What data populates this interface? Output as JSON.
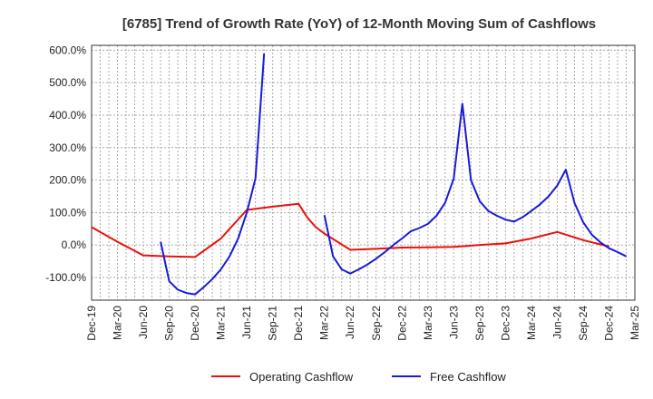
{
  "chart_data": {
    "type": "line",
    "title": "[6785]  Trend of Growth Rate (YoY) of 12-Month Moving Sum of Cashflows",
    "xlabel": "",
    "ylabel": "",
    "x_tick_labels": [
      "Dec-19",
      "Mar-20",
      "Jun-20",
      "Sep-20",
      "Dec-20",
      "Mar-21",
      "Jun-21",
      "Sep-21",
      "Dec-21",
      "Mar-22",
      "Jun-22",
      "Sep-22",
      "Dec-22",
      "Mar-23",
      "Jun-23",
      "Sep-23",
      "Dec-23",
      "Mar-24",
      "Jun-24",
      "Sep-24",
      "Dec-24",
      "Mar-25"
    ],
    "y_tick_labels": [
      "-100.0%",
      "0.0%",
      "100.0%",
      "200.0%",
      "300.0%",
      "400.0%",
      "500.0%",
      "600.0%"
    ],
    "y_ticks": [
      -100,
      0,
      100,
      200,
      300,
      400,
      500,
      600
    ],
    "ylim": [
      -170,
      615
    ],
    "grid": true,
    "legend_position": "bottom",
    "series": [
      {
        "name": "Operating Cashflow",
        "color": "#e8120c",
        "points": [
          [
            "Dec-19",
            55
          ],
          [
            "Mar-20",
            10
          ],
          [
            "Jun-20",
            -32
          ],
          [
            "Sep-20",
            -35
          ],
          [
            "Dec-20",
            -37
          ],
          [
            "Mar-21",
            20
          ],
          [
            "Jun-21",
            108
          ],
          [
            "Sep-21",
            118
          ],
          [
            "Dec-21",
            127
          ],
          [
            "Jan-22",
            85
          ],
          [
            "Feb-22",
            55
          ],
          [
            "Mar-22",
            35
          ],
          [
            "Jun-22",
            -15
          ],
          [
            "Sep-22",
            -12
          ],
          [
            "Dec-22",
            -8
          ],
          [
            "Mar-23",
            -7
          ],
          [
            "Jun-23",
            -6
          ],
          [
            "Sep-23",
            0
          ],
          [
            "Dec-23",
            5
          ],
          [
            "Mar-24",
            20
          ],
          [
            "Jun-24",
            40
          ],
          [
            "Sep-24",
            15
          ],
          [
            "Dec-24",
            -5
          ]
        ]
      },
      {
        "name": "Free Cashflow",
        "color": "#1a1adb",
        "points": [
          [
            "Aug-20",
            10
          ],
          [
            "Sep-20",
            -112
          ],
          [
            "Oct-20",
            -138
          ],
          [
            "Nov-20",
            -148
          ],
          [
            "Dec-20",
            -152
          ],
          [
            "Jan-21",
            -130
          ],
          [
            "Feb-21",
            -105
          ],
          [
            "Mar-21",
            -75
          ],
          [
            "Apr-21",
            -35
          ],
          [
            "May-21",
            20
          ],
          [
            "Jun-21",
            100
          ],
          [
            "Jul-21",
            205
          ],
          [
            "Aug-21",
            590
          ],
          [
            "Mar-22",
            92
          ],
          [
            "Apr-22",
            -35
          ],
          [
            "May-22",
            -75
          ],
          [
            "Jun-22",
            -88
          ],
          [
            "Jul-22",
            -75
          ],
          [
            "Aug-22",
            -60
          ],
          [
            "Sep-22",
            -42
          ],
          [
            "Oct-22",
            -22
          ],
          [
            "Nov-22",
            0
          ],
          [
            "Dec-22",
            20
          ],
          [
            "Jan-23",
            42
          ],
          [
            "Feb-23",
            52
          ],
          [
            "Mar-23",
            65
          ],
          [
            "Apr-23",
            90
          ],
          [
            "May-23",
            130
          ],
          [
            "Jun-23",
            205
          ],
          [
            "Jul-23",
            435
          ],
          [
            "Aug-23",
            200
          ],
          [
            "Sep-23",
            135
          ],
          [
            "Oct-23",
            105
          ],
          [
            "Nov-23",
            90
          ],
          [
            "Dec-23",
            78
          ],
          [
            "Jan-24",
            72
          ],
          [
            "Feb-24",
            86
          ],
          [
            "Mar-24",
            105
          ],
          [
            "Apr-24",
            125
          ],
          [
            "May-24",
            150
          ],
          [
            "Jun-24",
            183
          ],
          [
            "Jul-24",
            232
          ],
          [
            "Aug-24",
            130
          ],
          [
            "Sep-24",
            70
          ],
          [
            "Oct-24",
            32
          ],
          [
            "Nov-24",
            8
          ],
          [
            "Dec-24",
            -10
          ],
          [
            "Jan-25",
            -22
          ],
          [
            "Feb-25",
            -35
          ]
        ]
      }
    ]
  }
}
